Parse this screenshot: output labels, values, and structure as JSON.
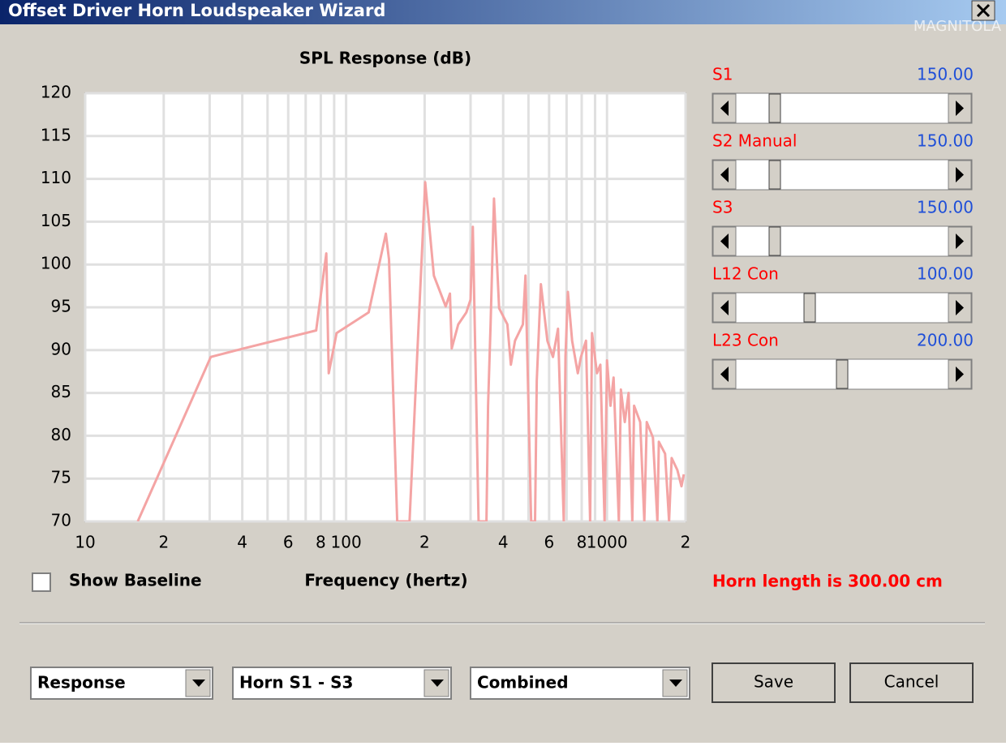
{
  "window": {
    "title": "Offset Driver Horn Loudspeaker Wizard",
    "watermark": "MAGNITOLA"
  },
  "chart_data": {
    "type": "line",
    "title": "SPL Response (dB)",
    "x_label": "Frequency (hertz)",
    "x_scale": "log",
    "xlim": [
      10,
      2000
    ],
    "ylim": [
      70,
      120
    ],
    "xticks": [
      10,
      {
        "value": 20,
        "label": "2"
      },
      {
        "value": 40,
        "label": "4"
      },
      {
        "value": 60,
        "label": "6"
      },
      {
        "value": 80,
        "label": "8"
      },
      100,
      {
        "value": 200,
        "label": "2"
      },
      {
        "value": 400,
        "label": "4"
      },
      {
        "value": 600,
        "label": "6"
      },
      {
        "value": 800,
        "label": "8"
      },
      1000,
      {
        "value": 2000,
        "label": "2"
      }
    ],
    "x_minor_ticks": [
      30,
      50,
      70,
      90,
      300,
      500,
      700,
      900
    ],
    "yticks": [
      70,
      75,
      80,
      85,
      90,
      95,
      100,
      105,
      110,
      115,
      120
    ],
    "grid": true,
    "color": "#f4a4a4",
    "x": [
      15.9,
      30.3,
      40.5,
      76.8,
      84,
      85.8,
      92,
      122,
      142,
      146,
      157,
      175,
      201,
      217,
      241,
      250,
      254,
      269,
      289,
      300,
      306,
      322,
      345,
      350,
      358,
      369,
      386,
      415,
      428,
      444,
      476,
      487,
      512,
      530,
      538,
      558,
      591,
      621,
      649,
      683,
      693,
      708,
      735,
      773,
      795,
      831,
      862,
      876,
      915,
      943,
      979,
      1000,
      1031,
      1060,
      1110,
      1130,
      1170,
      1210,
      1250,
      1270,
      1340,
      1390,
      1420,
      1500,
      1560,
      1580,
      1670,
      1730,
      1770,
      1860,
      1930,
      1970
    ],
    "values": [
      70,
      89.2,
      90.2,
      92.3,
      101.3,
      87.3,
      92,
      94.4,
      103.6,
      100.6,
      70,
      70,
      109.6,
      98.7,
      95.1,
      96.6,
      90.2,
      93,
      94.4,
      95.9,
      104.4,
      70,
      70,
      83.5,
      93,
      107.7,
      94.9,
      93,
      88.3,
      91.1,
      93,
      98.7,
      70,
      70,
      86.4,
      97.7,
      91.1,
      89.2,
      92.5,
      70,
      89.2,
      96.8,
      91.1,
      87.3,
      89.2,
      91.1,
      70,
      92,
      87.3,
      88.3,
      70,
      88.8,
      83.5,
      86.8,
      70,
      85.4,
      81.6,
      85,
      70,
      83.5,
      81.6,
      70,
      81.6,
      79.8,
      70,
      79.3,
      77.9,
      70,
      77.4,
      76,
      74.1,
      75.5
    ]
  },
  "sliders": [
    {
      "label": "S1",
      "value": "150.00"
    },
    {
      "label": "S2  Manual",
      "value": "150.00"
    },
    {
      "label": "S3",
      "value": "150.00"
    },
    {
      "label": "L12  Con",
      "value": "100.00"
    },
    {
      "label": "L23  Con",
      "value": "200.00"
    }
  ],
  "checkbox": {
    "label": "Show Baseline",
    "checked": false
  },
  "horn_length": "Horn length is 300.00 cm",
  "dropdowns": [
    "Response",
    "Horn S1 - S3",
    "Combined"
  ],
  "buttons": [
    "Save",
    "Cancel"
  ]
}
